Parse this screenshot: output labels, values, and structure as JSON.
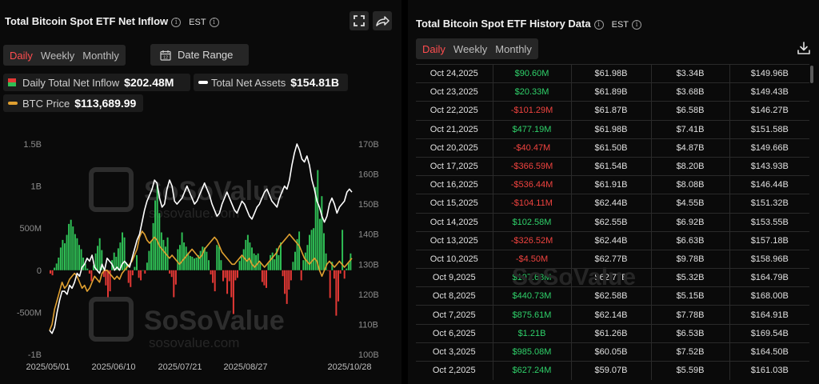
{
  "left": {
    "title": "Total Bitcoin Spot ETF Net Inflow",
    "timezone": "EST",
    "tabs": [
      "Daily",
      "Weekly",
      "Monthly"
    ],
    "active_tab": "Daily",
    "date_range_label": "Date Range",
    "legend": {
      "inflow_label": "Daily Total Net Inflow",
      "inflow_value": "$202.48M",
      "assets_label": "Total Net Assets",
      "assets_value": "$154.81B",
      "price_label": "BTC Price",
      "price_value": "$113,689.99"
    }
  },
  "right": {
    "title": "Total Bitcoin Spot ETF History Data",
    "timezone": "EST",
    "tabs": [
      "Daily",
      "Weekly",
      "Monthly"
    ],
    "active_tab": "Daily",
    "rows": [
      {
        "date": "Oct 24,2025",
        "inflow": "$90.60M",
        "value_traded": "$61.98B",
        "cum": "$3.34B",
        "net_assets": "$149.96B",
        "sign": "pos"
      },
      {
        "date": "Oct 23,2025",
        "inflow": "$20.33M",
        "value_traded": "$61.89B",
        "cum": "$3.68B",
        "net_assets": "$149.43B",
        "sign": "pos"
      },
      {
        "date": "Oct 22,2025",
        "inflow": "-$101.29M",
        "value_traded": "$61.87B",
        "cum": "$6.58B",
        "net_assets": "$146.27B",
        "sign": "neg"
      },
      {
        "date": "Oct 21,2025",
        "inflow": "$477.19M",
        "value_traded": "$61.98B",
        "cum": "$7.41B",
        "net_assets": "$151.58B",
        "sign": "pos"
      },
      {
        "date": "Oct 20,2025",
        "inflow": "-$40.47M",
        "value_traded": "$61.50B",
        "cum": "$4.87B",
        "net_assets": "$149.66B",
        "sign": "neg"
      },
      {
        "date": "Oct 17,2025",
        "inflow": "-$366.59M",
        "value_traded": "$61.54B",
        "cum": "$8.20B",
        "net_assets": "$143.93B",
        "sign": "neg"
      },
      {
        "date": "Oct 16,2025",
        "inflow": "-$536.44M",
        "value_traded": "$61.91B",
        "cum": "$8.08B",
        "net_assets": "$146.44B",
        "sign": "neg"
      },
      {
        "date": "Oct 15,2025",
        "inflow": "-$104.11M",
        "value_traded": "$62.44B",
        "cum": "$4.55B",
        "net_assets": "$151.32B",
        "sign": "neg"
      },
      {
        "date": "Oct 14,2025",
        "inflow": "$102.58M",
        "value_traded": "$62.55B",
        "cum": "$6.92B",
        "net_assets": "$153.55B",
        "sign": "pos"
      },
      {
        "date": "Oct 13,2025",
        "inflow": "-$326.52M",
        "value_traded": "$62.44B",
        "cum": "$6.63B",
        "net_assets": "$157.18B",
        "sign": "neg"
      },
      {
        "date": "Oct 10,2025",
        "inflow": "-$4.50M",
        "value_traded": "$62.77B",
        "cum": "$9.78B",
        "net_assets": "$158.96B",
        "sign": "neg"
      },
      {
        "date": "Oct 9,2025",
        "inflow": "$197.68M",
        "value_traded": "$62.77B",
        "cum": "$5.32B",
        "net_assets": "$164.79B",
        "sign": "pos"
      },
      {
        "date": "Oct 8,2025",
        "inflow": "$440.73M",
        "value_traded": "$62.58B",
        "cum": "$5.15B",
        "net_assets": "$168.00B",
        "sign": "pos"
      },
      {
        "date": "Oct 7,2025",
        "inflow": "$875.61M",
        "value_traded": "$62.14B",
        "cum": "$7.78B",
        "net_assets": "$164.91B",
        "sign": "pos"
      },
      {
        "date": "Oct 6,2025",
        "inflow": "$1.21B",
        "value_traded": "$61.26B",
        "cum": "$6.53B",
        "net_assets": "$169.54B",
        "sign": "pos"
      },
      {
        "date": "Oct 3,2025",
        "inflow": "$985.08M",
        "value_traded": "$60.05B",
        "cum": "$7.52B",
        "net_assets": "$164.50B",
        "sign": "pos"
      },
      {
        "date": "Oct 2,2025",
        "inflow": "$627.24M",
        "value_traded": "$59.07B",
        "cum": "$5.59B",
        "net_assets": "$161.03B",
        "sign": "pos"
      }
    ]
  },
  "watermark": {
    "brand": "SoSoValue",
    "url": "sosovalue.com"
  },
  "colors": {
    "inflow_positive": "#2fbf55",
    "inflow_negative": "#e53935",
    "net_assets_line": "#ffffff",
    "btc_price_line": "#e0a030",
    "accent": "#ff4d4f"
  },
  "chart_data": {
    "type": "bar",
    "x_ticks": [
      "2025/05/01",
      "2025/06/10",
      "2025/07/21",
      "2025/08/27",
      "2025/10/28"
    ],
    "y_left": {
      "ticks": [
        "1.5B",
        "1B",
        "500M",
        "0",
        "-500M",
        "-1B"
      ],
      "range": [
        -1000000000,
        1500000000
      ]
    },
    "y_right": {
      "ticks": [
        "170B",
        "160B",
        "150B",
        "140B",
        "130B",
        "120B",
        "110B",
        "100B"
      ],
      "range": [
        100,
        170
      ]
    },
    "series": [
      {
        "name": "Daily Total Net Inflow",
        "axis": "left",
        "kind": "bar",
        "values": [
          -40,
          -60,
          30,
          80,
          150,
          270,
          360,
          320,
          420,
          550,
          600,
          520,
          430,
          380,
          300,
          250,
          150,
          80,
          20,
          -40,
          -130,
          60,
          200,
          290,
          380,
          240,
          -80,
          -180,
          -320,
          -250,
          120,
          210,
          160,
          260,
          330,
          450,
          390,
          90,
          -150,
          -200,
          -60,
          40,
          180,
          -90,
          -120,
          0,
          -40,
          90,
          230,
          350,
          560,
          830,
          1010,
          680,
          450,
          360,
          280,
          390,
          -40,
          -80,
          -320,
          -170,
          250,
          300,
          450,
          330,
          280,
          210,
          170,
          160,
          140,
          150,
          180,
          230,
          280,
          270,
          220,
          120,
          -50,
          -150,
          -250,
          300,
          280,
          120,
          -130,
          -90,
          -280,
          -130,
          -320,
          -520,
          -120,
          -90,
          110,
          160,
          250,
          360,
          420,
          330,
          270,
          200,
          180,
          200,
          90,
          -140,
          -180,
          -210,
          90,
          180,
          210,
          130,
          260,
          180,
          330,
          -70,
          -280,
          -400,
          -230,
          -120,
          100,
          220,
          370,
          460,
          -120,
          120,
          210,
          300,
          420,
          480,
          500,
          990,
          1190,
          610,
          880,
          440,
          200,
          -4,
          -330,
          100,
          -100,
          -540,
          -370,
          -40,
          480,
          -100,
          20,
          90,
          200
        ]
      },
      {
        "name": "Total Net Assets",
        "axis": "right",
        "kind": "line",
        "values": [
          108,
          107,
          109,
          114,
          118,
          121,
          121,
          120,
          123,
          122,
          124,
          127,
          126,
          129,
          130,
          132,
          131,
          133,
          129,
          128,
          127,
          130,
          128,
          132,
          131,
          130,
          128,
          129,
          128,
          130,
          131,
          130,
          129,
          132,
          135,
          138,
          140,
          144,
          148,
          151,
          153,
          155,
          158,
          157,
          152,
          149,
          150,
          155,
          158,
          156,
          151,
          150,
          151,
          152,
          154,
          156,
          154,
          152,
          150,
          151,
          153,
          155,
          157,
          155,
          153,
          150,
          148,
          146,
          147,
          150,
          152,
          154,
          152,
          150,
          148,
          147,
          149,
          151,
          150,
          148,
          146,
          145,
          147,
          149,
          150,
          152,
          154,
          155,
          153,
          151,
          150,
          149,
          152,
          154,
          156,
          155,
          158,
          163,
          167,
          170,
          168,
          165,
          164,
          166,
          163,
          158,
          155,
          151,
          149,
          146,
          144,
          146,
          150,
          152,
          150,
          147,
          149,
          150,
          151,
          154,
          155,
          154
        ]
      },
      {
        "name": "BTC Price",
        "axis": "right",
        "kind": "line",
        "values": [
          108,
          110,
          115,
          118,
          121,
          124,
          122,
          123,
          125,
          126,
          127,
          126,
          124,
          122,
          123,
          121,
          122,
          124,
          126,
          125,
          124,
          127,
          128,
          128,
          127,
          126,
          125,
          126,
          125,
          127,
          128,
          129,
          130,
          131,
          133,
          135,
          139,
          141,
          140,
          138,
          137,
          138,
          139,
          138,
          136,
          135,
          134,
          133,
          132,
          133,
          132,
          131,
          130,
          131,
          132,
          133,
          134,
          135,
          134,
          133,
          132,
          133,
          135,
          136,
          137,
          138,
          139,
          138,
          136,
          134,
          133,
          132,
          131,
          130,
          130,
          131,
          132,
          133,
          132,
          131,
          132,
          130,
          129,
          130,
          131,
          130,
          129,
          130,
          131,
          132,
          133,
          134,
          136,
          137,
          138,
          139,
          140,
          139,
          138,
          137,
          136,
          134,
          132,
          131,
          130,
          131,
          132,
          131,
          128,
          126,
          128,
          130,
          131,
          130,
          129,
          130,
          131,
          130,
          129,
          130,
          131,
          132
        ]
      }
    ]
  }
}
